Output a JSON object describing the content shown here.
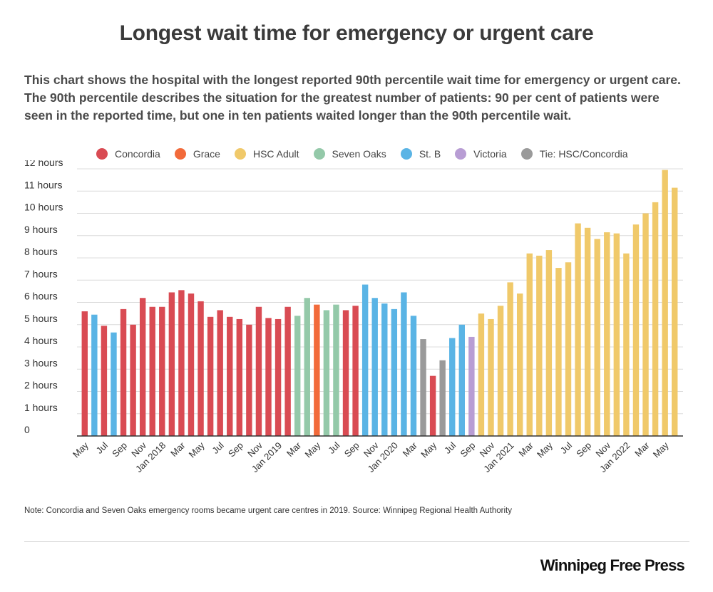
{
  "title": "Longest wait time for emergency or urgent care",
  "subtitle": "This chart shows the hospital with the longest reported 90th percentile wait time for emergency or urgent care. The 90th percentile describes the situation for the greatest number of patients: 90 per cent of patients were seen in the reported time, but one in ten patients waited longer than the 90th percentile wait.",
  "legend": [
    {
      "label": "Concordia",
      "color": "#d94b53"
    },
    {
      "label": "Grace",
      "color": "#f26a3a"
    },
    {
      "label": "HSC Adult",
      "color": "#f0c96a"
    },
    {
      "label": "Seven Oaks",
      "color": "#94c9a9"
    },
    {
      "label": "St. B",
      "color": "#5ab4e5"
    },
    {
      "label": "Victoria",
      "color": "#b89dd4"
    },
    {
      "label": "Tie: HSC/Concordia",
      "color": "#9a9a9a"
    }
  ],
  "chart_data": {
    "type": "bar",
    "ylim": [
      0,
      12
    ],
    "yticks": [
      "0",
      "1 hours",
      "2 hours",
      "3 hours",
      "4 hours",
      "5 hours",
      "6 hours",
      "7 hours",
      "8 hours",
      "9 hours",
      "10 hours",
      "11 hours",
      "12 hours"
    ],
    "xtick_labels": [
      "May",
      "Jul",
      "Sep",
      "Nov",
      "Jan 2018",
      "Mar",
      "May",
      "Jul",
      "Sep",
      "Nov",
      "Jan 2019",
      "Mar",
      "May",
      "Jul",
      "Sep",
      "Nov",
      "Jan 2020",
      "Mar",
      "May",
      "Jul",
      "Sep",
      "Nov",
      "Jan 2021",
      "Mar",
      "May",
      "Jul",
      "Sep",
      "Nov",
      "Jan 2022",
      "Mar",
      "May"
    ],
    "bars": [
      {
        "hospital": "Concordia",
        "value": 5.6
      },
      {
        "hospital": "St. B",
        "value": 5.45
      },
      {
        "hospital": "Concordia",
        "value": 4.95
      },
      {
        "hospital": "St. B",
        "value": 4.65
      },
      {
        "hospital": "Concordia",
        "value": 5.7
      },
      {
        "hospital": "Concordia",
        "value": 5.0
      },
      {
        "hospital": "Concordia",
        "value": 6.2
      },
      {
        "hospital": "Concordia",
        "value": 5.8
      },
      {
        "hospital": "Concordia",
        "value": 5.8
      },
      {
        "hospital": "Concordia",
        "value": 6.45
      },
      {
        "hospital": "Concordia",
        "value": 6.55
      },
      {
        "hospital": "Concordia",
        "value": 6.4
      },
      {
        "hospital": "Concordia",
        "value": 6.05
      },
      {
        "hospital": "Concordia",
        "value": 5.35
      },
      {
        "hospital": "Concordia",
        "value": 5.65
      },
      {
        "hospital": "Concordia",
        "value": 5.35
      },
      {
        "hospital": "Concordia",
        "value": 5.25
      },
      {
        "hospital": "Concordia",
        "value": 5.0
      },
      {
        "hospital": "Concordia",
        "value": 5.8
      },
      {
        "hospital": "Concordia",
        "value": 5.3
      },
      {
        "hospital": "Concordia",
        "value": 5.25
      },
      {
        "hospital": "Concordia",
        "value": 5.8
      },
      {
        "hospital": "Seven Oaks",
        "value": 5.4
      },
      {
        "hospital": "Seven Oaks",
        "value": 6.2
      },
      {
        "hospital": "Grace",
        "value": 5.9
      },
      {
        "hospital": "Seven Oaks",
        "value": 5.65
      },
      {
        "hospital": "Seven Oaks",
        "value": 5.9
      },
      {
        "hospital": "Concordia",
        "value": 5.65
      },
      {
        "hospital": "Concordia",
        "value": 5.85
      },
      {
        "hospital": "St. B",
        "value": 6.8
      },
      {
        "hospital": "St. B",
        "value": 6.2
      },
      {
        "hospital": "St. B",
        "value": 5.95
      },
      {
        "hospital": "St. B",
        "value": 5.7
      },
      {
        "hospital": "St. B",
        "value": 6.45
      },
      {
        "hospital": "St. B",
        "value": 5.4
      },
      {
        "hospital": "Tie: HSC/Concordia",
        "value": 4.35
      },
      {
        "hospital": "Concordia",
        "value": 2.7
      },
      {
        "hospital": "Tie: HSC/Concordia",
        "value": 3.4
      },
      {
        "hospital": "St. B",
        "value": 4.4
      },
      {
        "hospital": "St. B",
        "value": 5.0
      },
      {
        "hospital": "Victoria",
        "value": 4.45
      },
      {
        "hospital": "HSC Adult",
        "value": 5.5
      },
      {
        "hospital": "HSC Adult",
        "value": 5.25
      },
      {
        "hospital": "HSC Adult",
        "value": 5.85
      },
      {
        "hospital": "HSC Adult",
        "value": 6.9
      },
      {
        "hospital": "HSC Adult",
        "value": 6.4
      },
      {
        "hospital": "HSC Adult",
        "value": 8.2
      },
      {
        "hospital": "HSC Adult",
        "value": 8.1
      },
      {
        "hospital": "HSC Adult",
        "value": 8.35
      },
      {
        "hospital": "HSC Adult",
        "value": 7.55
      },
      {
        "hospital": "HSC Adult",
        "value": 7.8
      },
      {
        "hospital": "HSC Adult",
        "value": 9.55
      },
      {
        "hospital": "HSC Adult",
        "value": 9.35
      },
      {
        "hospital": "HSC Adult",
        "value": 8.85
      },
      {
        "hospital": "HSC Adult",
        "value": 9.15
      },
      {
        "hospital": "HSC Adult",
        "value": 9.1
      },
      {
        "hospital": "HSC Adult",
        "value": 8.2
      },
      {
        "hospital": "HSC Adult",
        "value": 9.5
      },
      {
        "hospital": "HSC Adult",
        "value": 10.0
      },
      {
        "hospital": "HSC Adult",
        "value": 10.5
      },
      {
        "hospital": "HSC Adult",
        "value": 11.95
      },
      {
        "hospital": "HSC Adult",
        "value": 11.15
      }
    ]
  },
  "note": "Note: Concordia and Seven Oaks emergency rooms became urgent care centres in 2019.  Source: Winnipeg Regional Health Authority",
  "logo_text": "Winnipeg Free Press"
}
